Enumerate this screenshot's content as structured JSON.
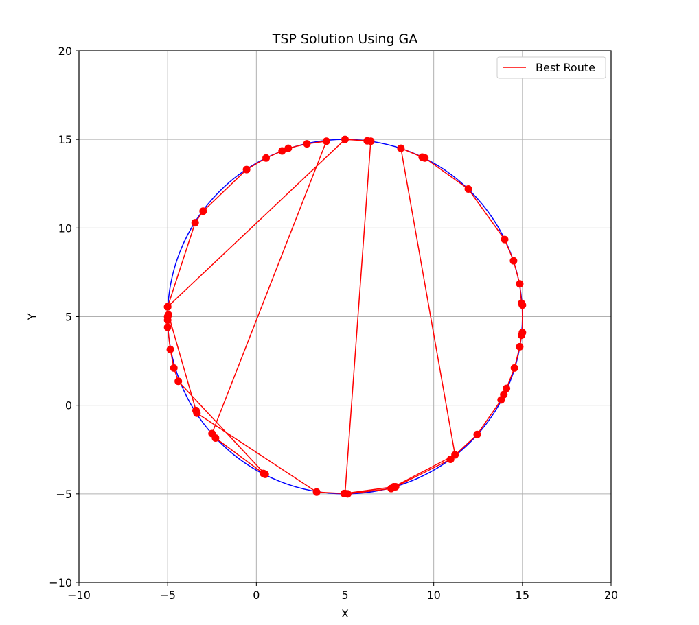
{
  "chart_data": {
    "type": "line",
    "title": "TSP Solution Using GA",
    "xlabel": "X",
    "ylabel": "Y",
    "xlim": [
      -10,
      20
    ],
    "ylim": [
      -10,
      20
    ],
    "x_ticks": [
      -10,
      -5,
      0,
      5,
      10,
      15,
      20
    ],
    "y_ticks": [
      -10,
      -5,
      0,
      5,
      10,
      15,
      20
    ],
    "x_tick_labels": [
      "−10",
      "−5",
      "0",
      "5",
      "10",
      "15",
      "20"
    ],
    "y_tick_labels": [
      "−10",
      "−5",
      "0",
      "5",
      "10",
      "15",
      "20"
    ],
    "grid": true,
    "legend_position": "top-right",
    "legend": [
      {
        "label": "Best Route",
        "color": "#ff0000"
      }
    ],
    "circle": {
      "center": [
        5,
        5
      ],
      "radius": 10,
      "color": "#0000ff"
    },
    "route_color": "#ff0000",
    "point_color": "#ff0000",
    "route": [
      [
        -5,
        5.55
      ],
      [
        -3.45,
        10.3
      ],
      [
        -3.0,
        10.95
      ],
      [
        -0.55,
        13.3
      ],
      [
        0.55,
        13.95
      ],
      [
        1.45,
        14.35
      ],
      [
        1.8,
        14.5
      ],
      [
        2.85,
        14.75
      ],
      [
        3.95,
        14.9
      ],
      [
        -2.5,
        -1.6
      ],
      [
        -2.3,
        -1.85
      ],
      [
        0.4,
        -3.85
      ],
      [
        0.5,
        -3.9
      ],
      [
        -4.4,
        1.35
      ],
      [
        -4.65,
        2.1
      ],
      [
        -4.85,
        3.15
      ],
      [
        -5,
        4.4
      ],
      [
        -5,
        4.8
      ],
      [
        -5,
        5.0
      ],
      [
        -4.95,
        5.1
      ],
      [
        -3.4,
        -0.3
      ],
      [
        -3.35,
        -0.45
      ],
      [
        3.4,
        -4.9
      ],
      [
        4.95,
        -4.98
      ],
      [
        5.15,
        -5.0
      ],
      [
        7.6,
        -4.7
      ],
      [
        7.85,
        -4.6
      ],
      [
        10.95,
        -3.05
      ],
      [
        12.45,
        -1.65
      ],
      [
        13.8,
        0.3
      ],
      [
        13.95,
        0.6
      ],
      [
        14.1,
        0.95
      ],
      [
        14.55,
        2.1
      ],
      [
        14.85,
        3.3
      ],
      [
        14.95,
        3.95
      ],
      [
        15.0,
        4.1
      ],
      [
        15.0,
        5.65
      ],
      [
        14.95,
        5.75
      ],
      [
        14.85,
        6.85
      ],
      [
        14.5,
        8.15
      ],
      [
        14.0,
        9.35
      ],
      [
        11.95,
        12.2
      ],
      [
        9.5,
        13.95
      ],
      [
        9.35,
        14.0
      ],
      [
        8.15,
        14.5
      ],
      [
        11.2,
        -2.8
      ],
      [
        7.75,
        -4.6
      ],
      [
        5.0,
        -4.98
      ],
      [
        6.45,
        14.9
      ],
      [
        6.25,
        14.92
      ],
      [
        5.0,
        15.0
      ],
      [
        -5,
        5.55
      ]
    ]
  }
}
